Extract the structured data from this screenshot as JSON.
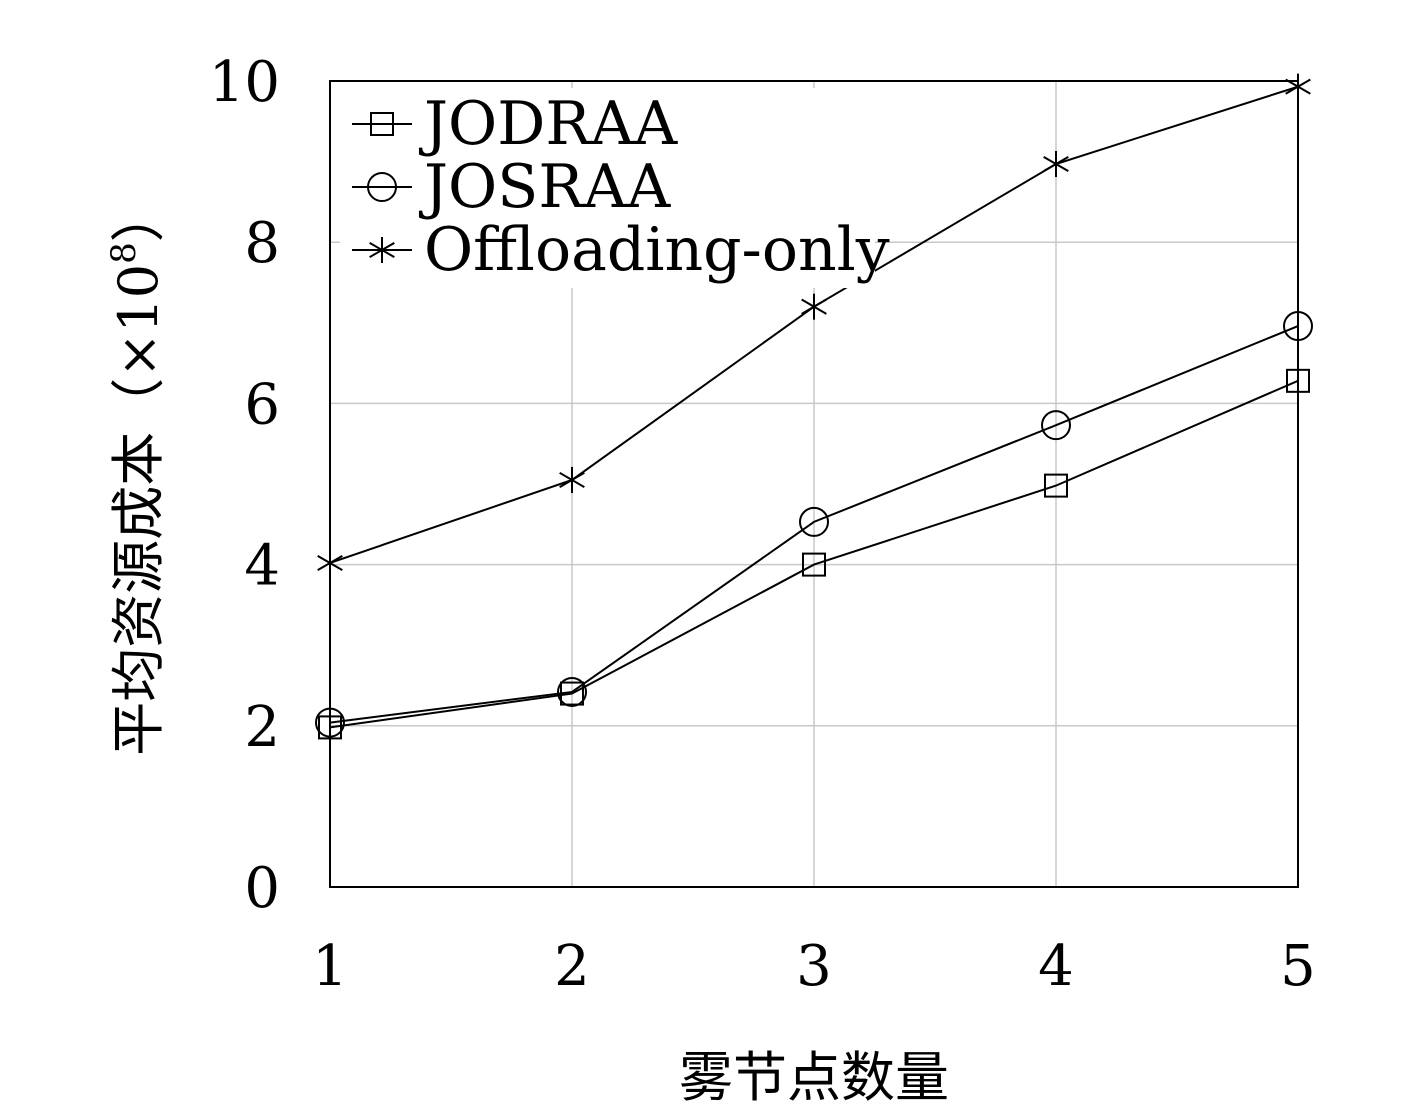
{
  "chart_data": {
    "type": "line",
    "x": [
      1,
      2,
      3,
      4,
      5
    ],
    "xlabel": "雾节点数量",
    "ylabel": "平均资源成本（×10",
    "ylabel_exponent": "8",
    "ylabel_suffix": "）",
    "xlim": [
      1,
      5
    ],
    "ylim": [
      0,
      10
    ],
    "xticks": [
      1,
      2,
      3,
      4,
      5
    ],
    "yticks": [
      0,
      2,
      4,
      6,
      8,
      10
    ],
    "grid": true,
    "legend_position": "top-left",
    "series": [
      {
        "name": "JODRAA",
        "marker": "square",
        "values": [
          1.98,
          2.4,
          4.0,
          4.98,
          6.28
        ]
      },
      {
        "name": "JOSRAA",
        "marker": "circle",
        "values": [
          2.04,
          2.42,
          4.53,
          5.73,
          6.96
        ]
      },
      {
        "name": "Offloading-only",
        "marker": "asterisk",
        "values": [
          4.02,
          5.05,
          7.2,
          8.97,
          9.93
        ]
      }
    ],
    "colors": {
      "line": "#000000",
      "grid": "#c8c8c8",
      "axes": "#000000"
    }
  }
}
